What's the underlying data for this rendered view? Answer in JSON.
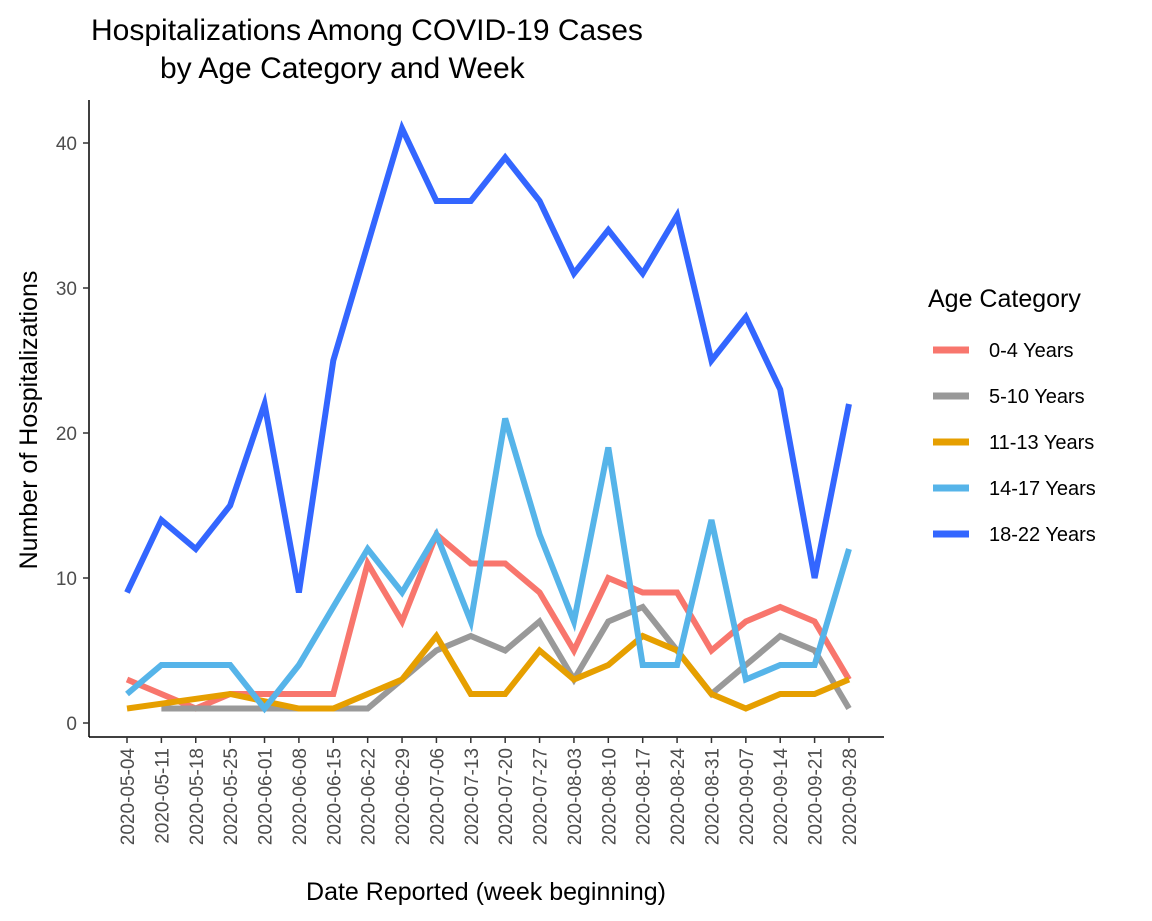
{
  "chart_data": {
    "type": "line",
    "title_lines": [
      "Hospitalizations Among COVID-19 Cases",
      "by Age Category and Week"
    ],
    "xlabel": "Date Reported (week beginning)",
    "ylabel": "Number of Hospitalizations",
    "ylim": [
      0,
      41
    ],
    "yticks": [
      0,
      10,
      20,
      30,
      40
    ],
    "grid": false,
    "legend": {
      "title": "Age Category",
      "position": "right"
    },
    "x": [
      "2020-05-04",
      "2020-05-11",
      "2020-05-18",
      "2020-05-25",
      "2020-06-01",
      "2020-06-08",
      "2020-06-15",
      "2020-06-22",
      "2020-06-29",
      "2020-07-06",
      "2020-07-13",
      "2020-07-20",
      "2020-07-27",
      "2020-08-03",
      "2020-08-10",
      "2020-08-17",
      "2020-08-24",
      "2020-08-31",
      "2020-09-07",
      "2020-09-14",
      "2020-09-21",
      "2020-09-28"
    ],
    "series": [
      {
        "name": "0-4 Years",
        "color": "#F8766D",
        "values": [
          3,
          2,
          1,
          2,
          2,
          2,
          2,
          11,
          7,
          13,
          11,
          11,
          9,
          5,
          10,
          9,
          9,
          5,
          7,
          8,
          7,
          3
        ]
      },
      {
        "name": "5-10 Years",
        "color": "#999999",
        "values": [
          null,
          1,
          1,
          1,
          1,
          1,
          1,
          1,
          3,
          5,
          6,
          5,
          7,
          3,
          7,
          8,
          5,
          2,
          4,
          6,
          5,
          1
        ]
      },
      {
        "name": "11-13 Years",
        "color": "#E69F00",
        "values": [
          1,
          null,
          null,
          2,
          null,
          1,
          1,
          2,
          3,
          6,
          2,
          2,
          5,
          3,
          4,
          6,
          5,
          2,
          1,
          2,
          2,
          3
        ]
      },
      {
        "name": "14-17 Years",
        "color": "#56B4E9",
        "values": [
          2,
          4,
          4,
          4,
          1,
          4,
          8,
          12,
          9,
          13,
          7,
          21,
          13,
          7,
          19,
          4,
          4,
          14,
          3,
          4,
          4,
          12
        ]
      },
      {
        "name": "18-22 Years",
        "color": "#3366FF",
        "values": [
          9,
          14,
          12,
          15,
          22,
          9,
          25,
          33,
          41,
          36,
          36,
          39,
          36,
          31,
          34,
          31,
          35,
          25,
          28,
          23,
          10,
          22
        ]
      }
    ]
  }
}
